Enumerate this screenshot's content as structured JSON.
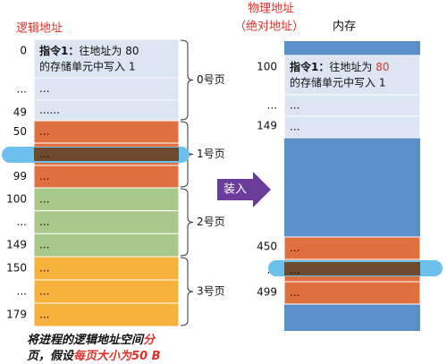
{
  "logical": {
    "title": "逻辑地址",
    "instruction": {
      "label": "指令1：",
      "prefix": "往地址为 ",
      "address": "80",
      "line2": "的存储单元中写入 1"
    },
    "pages": [
      {
        "name": "0号页",
        "addresses": [
          "0",
          "...",
          "49"
        ],
        "cells": [
          "...",
          "......"
        ]
      },
      {
        "name": "1号页",
        "addresses": [
          "50",
          "...",
          "99"
        ],
        "cells": [
          "...",
          "...",
          "..."
        ]
      },
      {
        "name": "2号页",
        "addresses": [
          "100",
          "...",
          "149"
        ],
        "cells": [
          "...",
          "...",
          "..."
        ]
      },
      {
        "name": "3号页",
        "addresses": [
          "150",
          "...",
          "179"
        ],
        "cells": [
          "...",
          "...",
          "..."
        ]
      }
    ]
  },
  "caption": {
    "part1": "将进程的逻辑地址空间",
    "part2": "分",
    "part3": "页，假设",
    "part4": "每页大小为",
    "part5": "50 B"
  },
  "arrow": "装入",
  "physical": {
    "title_line1": "物理地址",
    "title_line2": "（绝对地址）",
    "memory": "内存",
    "top_addresses": [
      "100",
      "...",
      "149"
    ],
    "top_cells": [
      "...",
      "..."
    ],
    "bottom_addresses": [
      "450",
      "...",
      "499"
    ],
    "bottom_cells": [
      "...",
      "...",
      "..."
    ]
  }
}
